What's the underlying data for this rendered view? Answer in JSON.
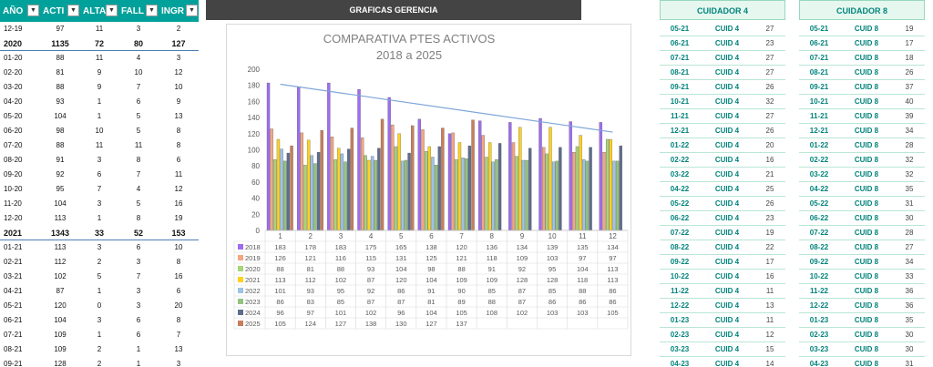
{
  "left_table": {
    "headers": [
      "AÑO",
      "ACTI",
      "ALTA",
      "FALL",
      "INGR"
    ],
    "rows": [
      {
        "m": "12-19",
        "a": "97",
        "b": "11",
        "c": "3",
        "d": "2",
        "y": false
      },
      {
        "m": "2020",
        "a": "1135",
        "b": "72",
        "c": "80",
        "d": "127",
        "y": true
      },
      {
        "m": "01-20",
        "a": "88",
        "b": "11",
        "c": "4",
        "d": "3",
        "y": false
      },
      {
        "m": "02-20",
        "a": "81",
        "b": "9",
        "c": "10",
        "d": "12",
        "y": false
      },
      {
        "m": "03-20",
        "a": "88",
        "b": "9",
        "c": "7",
        "d": "10",
        "y": false
      },
      {
        "m": "04-20",
        "a": "93",
        "b": "1",
        "c": "6",
        "d": "9",
        "y": false
      },
      {
        "m": "05-20",
        "a": "104",
        "b": "1",
        "c": "5",
        "d": "13",
        "y": false
      },
      {
        "m": "06-20",
        "a": "98",
        "b": "10",
        "c": "5",
        "d": "8",
        "y": false
      },
      {
        "m": "07-20",
        "a": "88",
        "b": "11",
        "c": "11",
        "d": "8",
        "y": false
      },
      {
        "m": "08-20",
        "a": "91",
        "b": "3",
        "c": "8",
        "d": "6",
        "y": false
      },
      {
        "m": "09-20",
        "a": "92",
        "b": "6",
        "c": "7",
        "d": "11",
        "y": false
      },
      {
        "m": "10-20",
        "a": "95",
        "b": "7",
        "c": "4",
        "d": "12",
        "y": false
      },
      {
        "m": "11-20",
        "a": "104",
        "b": "3",
        "c": "5",
        "d": "16",
        "y": false
      },
      {
        "m": "12-20",
        "a": "113",
        "b": "1",
        "c": "8",
        "d": "19",
        "y": false
      },
      {
        "m": "2021",
        "a": "1343",
        "b": "33",
        "c": "52",
        "d": "153",
        "y": true
      },
      {
        "m": "01-21",
        "a": "113",
        "b": "3",
        "c": "6",
        "d": "10",
        "y": false
      },
      {
        "m": "02-21",
        "a": "112",
        "b": "2",
        "c": "3",
        "d": "8",
        "y": false
      },
      {
        "m": "03-21",
        "a": "102",
        "b": "5",
        "c": "7",
        "d": "16",
        "y": false
      },
      {
        "m": "04-21",
        "a": "87",
        "b": "1",
        "c": "3",
        "d": "6",
        "y": false
      },
      {
        "m": "05-21",
        "a": "120",
        "b": "0",
        "c": "3",
        "d": "20",
        "y": false
      },
      {
        "m": "06-21",
        "a": "104",
        "b": "3",
        "c": "6",
        "d": "8",
        "y": false
      },
      {
        "m": "07-21",
        "a": "109",
        "b": "1",
        "c": "6",
        "d": "7",
        "y": false
      },
      {
        "m": "08-21",
        "a": "109",
        "b": "2",
        "c": "1",
        "d": "13",
        "y": false
      },
      {
        "m": "09-21",
        "a": "128",
        "b": "2",
        "c": "1",
        "d": "3",
        "y": false
      }
    ]
  },
  "banner": "GRAFICAS GERENCIA",
  "chart_data": {
    "type": "bar",
    "title": "COMPARATIVA PTES ACTIVOS",
    "subtitle": "2018 a 2025",
    "categories": [
      "1",
      "2",
      "3",
      "4",
      "5",
      "6",
      "7",
      "8",
      "9",
      "10",
      "11",
      "12"
    ],
    "ylim": [
      0,
      200
    ],
    "yticks": [
      "0",
      "20",
      "40",
      "60",
      "80",
      "100",
      "120",
      "140",
      "160",
      "180",
      "200"
    ],
    "grid": false,
    "legend": "table-below",
    "trendline": {
      "series": "2018",
      "type": "linear",
      "color": "#7ea6d8"
    },
    "series": [
      {
        "name": "2018",
        "color": "#9f6cf0",
        "values": [
          183,
          178,
          183,
          175,
          165,
          138,
          120,
          136,
          134,
          139,
          135,
          134
        ]
      },
      {
        "name": "2019",
        "color": "#f4a582",
        "values": [
          126,
          121,
          116,
          115,
          131,
          125,
          121,
          118,
          109,
          103,
          97,
          97
        ]
      },
      {
        "name": "2020",
        "color": "#a8d47a",
        "values": [
          88,
          81,
          88,
          93,
          104,
          98,
          88,
          91,
          92,
          95,
          104,
          113
        ]
      },
      {
        "name": "2021",
        "color": "#ffd21f",
        "values": [
          113,
          112,
          102,
          87,
          120,
          104,
          109,
          109,
          128,
          128,
          118,
          113
        ]
      },
      {
        "name": "2022",
        "color": "#9dc3e6",
        "values": [
          101,
          93,
          95,
          92,
          86,
          91,
          90,
          85,
          87,
          85,
          88,
          86
        ]
      },
      {
        "name": "2023",
        "color": "#92c47e",
        "values": [
          86,
          83,
          85,
          87,
          87,
          81,
          89,
          88,
          87,
          86,
          86,
          86
        ]
      },
      {
        "name": "2024",
        "color": "#5d6d8e",
        "values": [
          96,
          97,
          101,
          102,
          96,
          104,
          105,
          108,
          102,
          103,
          103,
          105
        ]
      },
      {
        "name": "2025",
        "color": "#c97d5a",
        "values": [
          105,
          124,
          127,
          138,
          130,
          127,
          137,
          null,
          null,
          null,
          null,
          null
        ]
      }
    ]
  },
  "cuidador4": {
    "title": "CUIDADOR 4",
    "rows": [
      {
        "f": "05-21",
        "c": "CUID 4",
        "n": "27"
      },
      {
        "f": "06-21",
        "c": "CUID 4",
        "n": "23"
      },
      {
        "f": "07-21",
        "c": "CUID 4",
        "n": "27"
      },
      {
        "f": "08-21",
        "c": "CUID 4",
        "n": "27"
      },
      {
        "f": "09-21",
        "c": "CUID 4",
        "n": "26"
      },
      {
        "f": "10-21",
        "c": "CUID 4",
        "n": "32"
      },
      {
        "f": "11-21",
        "c": "CUID 4",
        "n": "27"
      },
      {
        "f": "12-21",
        "c": "CUID 4",
        "n": "26"
      },
      {
        "f": "01-22",
        "c": "CUID 4",
        "n": "20"
      },
      {
        "f": "02-22",
        "c": "CUID 4",
        "n": "16"
      },
      {
        "f": "03-22",
        "c": "CUID 4",
        "n": "21"
      },
      {
        "f": "04-22",
        "c": "CUID 4",
        "n": "25"
      },
      {
        "f": "05-22",
        "c": "CUID 4",
        "n": "26"
      },
      {
        "f": "06-22",
        "c": "CUID 4",
        "n": "23"
      },
      {
        "f": "07-22",
        "c": "CUID 4",
        "n": "19"
      },
      {
        "f": "08-22",
        "c": "CUID 4",
        "n": "22"
      },
      {
        "f": "09-22",
        "c": "CUID 4",
        "n": "17"
      },
      {
        "f": "10-22",
        "c": "CUID 4",
        "n": "16"
      },
      {
        "f": "11-22",
        "c": "CUID 4",
        "n": "11"
      },
      {
        "f": "12-22",
        "c": "CUID 4",
        "n": "13"
      },
      {
        "f": "01-23",
        "c": "CUID 4",
        "n": "11"
      },
      {
        "f": "02-23",
        "c": "CUID 4",
        "n": "12"
      },
      {
        "f": "03-23",
        "c": "CUID 4",
        "n": "15"
      },
      {
        "f": "04-23",
        "c": "CUID 4",
        "n": "14"
      }
    ]
  },
  "cuidador8": {
    "title": "CUIDADOR 8",
    "rows": [
      {
        "f": "05-21",
        "c": "CUID 8",
        "n": "19"
      },
      {
        "f": "06-21",
        "c": "CUID 8",
        "n": "17"
      },
      {
        "f": "07-21",
        "c": "CUID 8",
        "n": "18"
      },
      {
        "f": "08-21",
        "c": "CUID 8",
        "n": "26"
      },
      {
        "f": "09-21",
        "c": "CUID 8",
        "n": "37"
      },
      {
        "f": "10-21",
        "c": "CUID 8",
        "n": "40"
      },
      {
        "f": "11-21",
        "c": "CUID 8",
        "n": "39"
      },
      {
        "f": "12-21",
        "c": "CUID 8",
        "n": "34"
      },
      {
        "f": "01-22",
        "c": "CUID 8",
        "n": "28"
      },
      {
        "f": "02-22",
        "c": "CUID 8",
        "n": "32"
      },
      {
        "f": "03-22",
        "c": "CUID 8",
        "n": "32"
      },
      {
        "f": "04-22",
        "c": "CUID 8",
        "n": "35"
      },
      {
        "f": "05-22",
        "c": "CUID 8",
        "n": "31"
      },
      {
        "f": "06-22",
        "c": "CUID 8",
        "n": "30"
      },
      {
        "f": "07-22",
        "c": "CUID 8",
        "n": "28"
      },
      {
        "f": "08-22",
        "c": "CUID 8",
        "n": "27"
      },
      {
        "f": "09-22",
        "c": "CUID 8",
        "n": "34"
      },
      {
        "f": "10-22",
        "c": "CUID 8",
        "n": "33"
      },
      {
        "f": "11-22",
        "c": "CUID 8",
        "n": "36"
      },
      {
        "f": "12-22",
        "c": "CUID 8",
        "n": "36"
      },
      {
        "f": "01-23",
        "c": "CUID 8",
        "n": "35"
      },
      {
        "f": "02-23",
        "c": "CUID 8",
        "n": "30"
      },
      {
        "f": "03-23",
        "c": "CUID 8",
        "n": "30"
      },
      {
        "f": "04-23",
        "c": "CUID 8",
        "n": "31"
      }
    ]
  }
}
